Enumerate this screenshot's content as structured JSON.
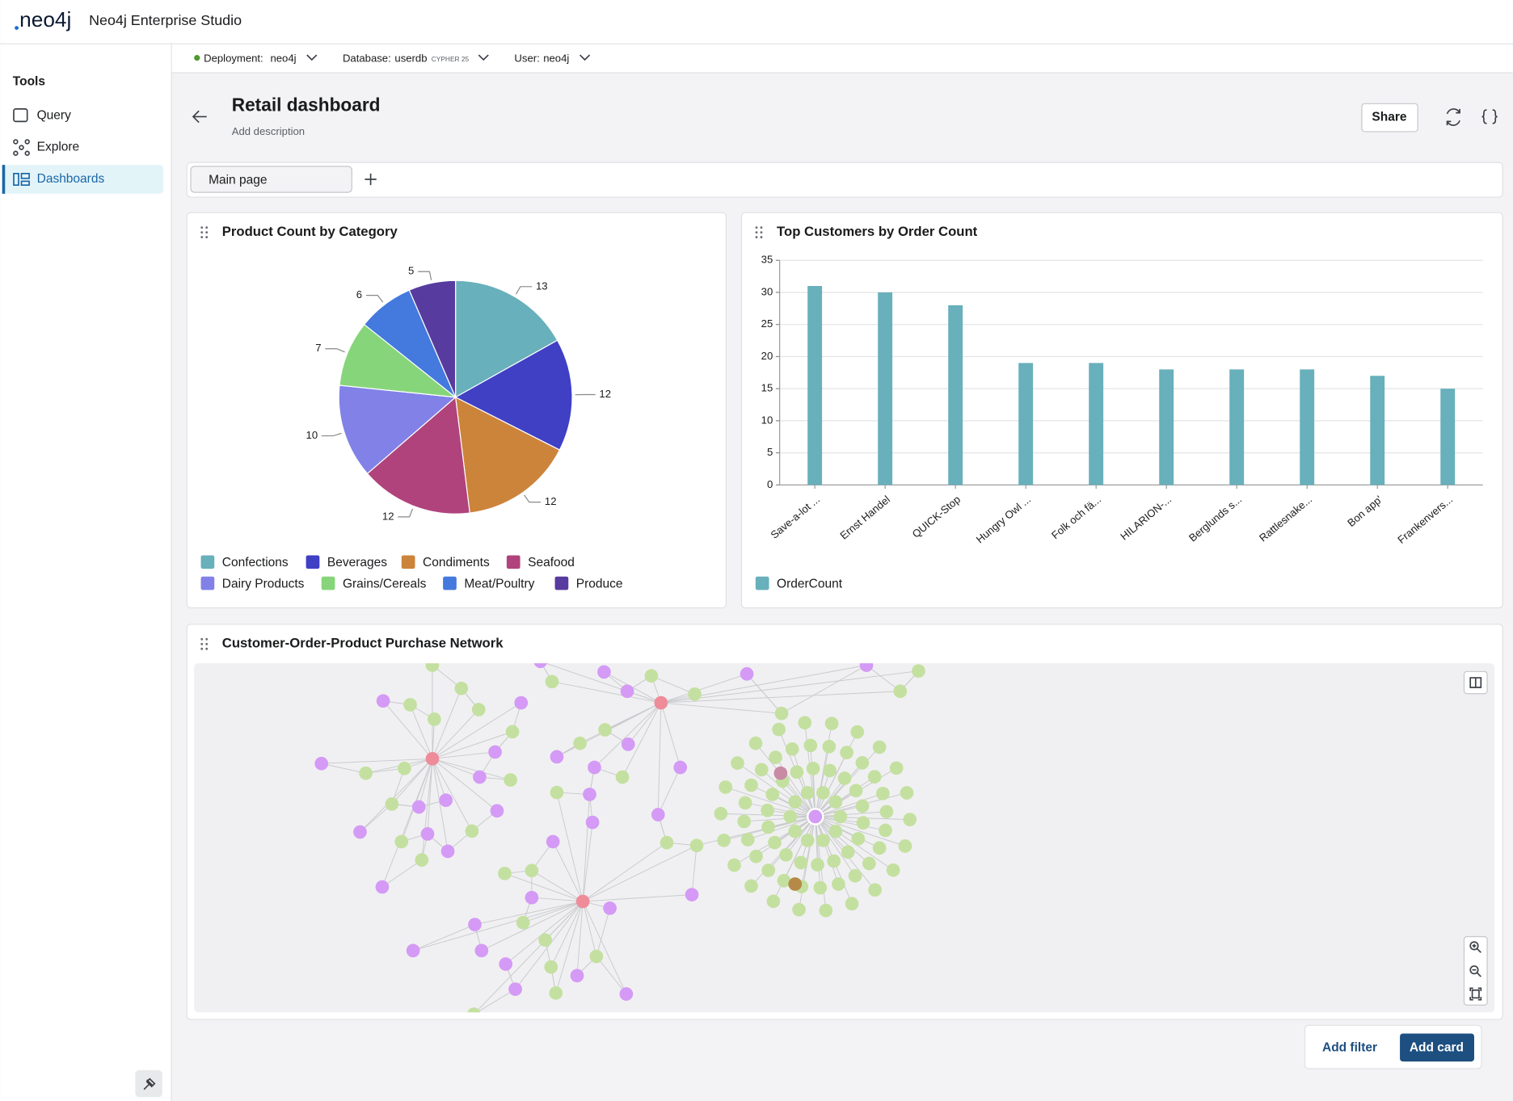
{
  "app": {
    "brand": "neo4j",
    "title": "Neo4j Enterprise Studio"
  },
  "connection": {
    "deployment_label": "Deployment:",
    "deployment": "neo4j",
    "database_label": "Database:",
    "database": "userdb",
    "cypher": "CYPHER 25",
    "user_label": "User:",
    "user": "neo4j"
  },
  "sidebar": {
    "heading": "Tools",
    "items": [
      "Query",
      "Explore",
      "Dashboards"
    ]
  },
  "dashboard": {
    "title": "Retail dashboard",
    "description": "Add description",
    "share": "Share",
    "tabs": [
      "Main page"
    ],
    "network_title": "Customer-Order-Product Purchase Network",
    "add_filter": "Add filter",
    "add_card": "Add card"
  },
  "chart_data": [
    {
      "type": "pie",
      "title": "Product Count by Category",
      "categories": [
        "Confections",
        "Beverages",
        "Condiments",
        "Seafood",
        "Dairy Products",
        "Grains/Cereals",
        "Meat/Poultry",
        "Produce"
      ],
      "values": [
        13,
        12,
        12,
        12,
        10,
        7,
        6,
        5
      ],
      "colors": [
        "#68b0bb",
        "#3f40c4",
        "#cc843b",
        "#b0437c",
        "#8181e8",
        "#87d57b",
        "#4479de",
        "#573b9f"
      ]
    },
    {
      "type": "bar",
      "title": "Top Customers by Order Count",
      "categories": [
        "Save-a-lot ...",
        "Ernst Handel",
        "QUICK-Stop",
        "Hungry Owl ...",
        "Folk och fä...",
        "HILARION-...",
        "Berglunds s...",
        "Rattlesnake...",
        "Bon app'",
        "Frankenvers..."
      ],
      "series": [
        {
          "name": "OrderCount",
          "color": "#68b0bb",
          "values": [
            31,
            30,
            28,
            19,
            19,
            18,
            18,
            18,
            17,
            15
          ]
        }
      ],
      "ylim": [
        0,
        35
      ],
      "yticks": [
        0,
        5,
        10,
        15,
        20,
        25,
        30,
        35
      ],
      "grid": true
    }
  ]
}
